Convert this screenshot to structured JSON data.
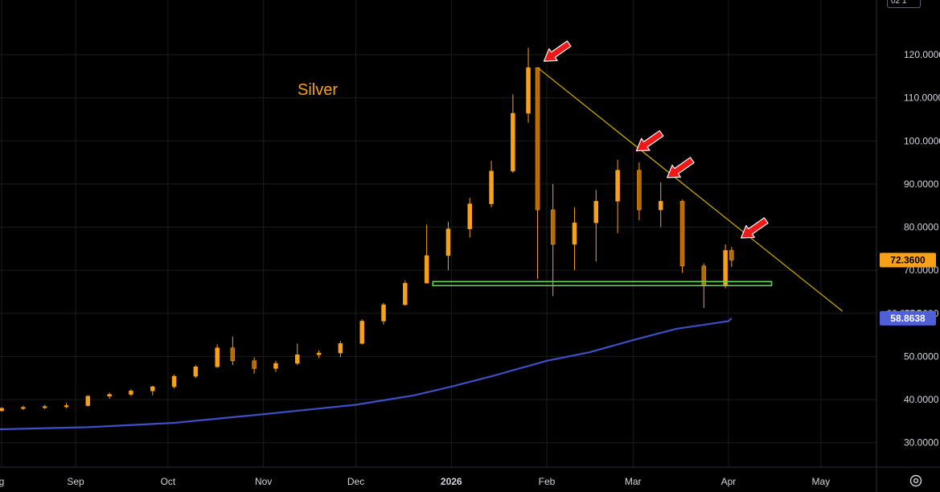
{
  "scale_box": {
    "label": "02 1"
  },
  "chart_data": {
    "type": "candlestick",
    "title": "Silver",
    "colors": {
      "background": "#000000",
      "candle": "#f7a11a",
      "trendline": "#d4b106",
      "support": "#5cdb4a",
      "moving_average": "#3f4fc4",
      "arrows": "#f01818",
      "grid": "#1c1c1c",
      "axis_text": "#d1d4dc"
    },
    "y_axis": {
      "min": 25,
      "max": 127,
      "ticks": [
        "30.0000",
        "40.0000",
        "50.0000",
        "60.0000",
        "70.0000",
        "80.0000",
        "90.0000",
        "100.0000",
        "110.0000",
        "120.0000"
      ]
    },
    "x_axis": {
      "ticks": [
        "g",
        "Sep",
        "Oct",
        "Nov",
        "Dec",
        "2026",
        "Feb",
        "Mar",
        "Apr",
        "May"
      ]
    },
    "last_price": "72.3600",
    "moving_average_last": "58.8638",
    "hidden_label_partial": "60.0000",
    "price_series": [
      [
        "Aug 1",
        37.0,
        37.6,
        36.8,
        37.4
      ],
      [
        "Aug 8",
        37.4,
        38.2,
        37.2,
        38.0
      ],
      [
        "Aug 15",
        38.0,
        38.6,
        37.6,
        38.2
      ],
      [
        "Aug 22",
        38.2,
        38.8,
        37.8,
        38.4
      ],
      [
        "Aug 29",
        38.4,
        39.2,
        38.0,
        38.6
      ],
      [
        "Sep 5",
        38.6,
        41.0,
        38.4,
        40.8
      ],
      [
        "Sep 12",
        40.8,
        41.6,
        40.2,
        41.2
      ],
      [
        "Sep 19",
        41.2,
        42.4,
        40.8,
        42.0
      ],
      [
        "Sep 26",
        42.0,
        43.2,
        41.0,
        43.0
      ],
      [
        "Oct 3",
        43.0,
        45.8,
        42.6,
        45.4
      ],
      [
        "Oct 10",
        45.4,
        48.0,
        45.0,
        47.6
      ],
      [
        "Oct 17",
        47.6,
        52.8,
        47.4,
        52.0
      ],
      [
        "Oct 22",
        52.0,
        54.6,
        48.0,
        49.0
      ],
      [
        "Oct 29",
        49.0,
        49.8,
        46.0,
        47.2
      ],
      [
        "Nov 5",
        47.2,
        49.0,
        46.4,
        48.4
      ],
      [
        "Nov 12",
        48.4,
        53.0,
        48.0,
        50.4
      ],
      [
        "Nov 19",
        50.4,
        51.4,
        49.6,
        50.8
      ],
      [
        "Nov 26",
        50.8,
        53.6,
        49.8,
        53.0
      ],
      [
        "Dec 3",
        53.0,
        58.6,
        52.8,
        58.2
      ],
      [
        "Dec 10",
        58.2,
        62.4,
        57.4,
        62.0
      ],
      [
        "Dec 17",
        62.0,
        67.6,
        61.8,
        67.0
      ],
      [
        "Dec 24",
        67.0,
        80.6,
        69.4,
        73.4
      ],
      [
        "Dec 31",
        73.4,
        81.2,
        70.0,
        79.6
      ],
      [
        "Jan 7",
        79.6,
        86.8,
        77.6,
        85.4
      ],
      [
        "Jan 14",
        85.4,
        95.4,
        84.6,
        93.0
      ],
      [
        "Jan 21",
        93.0,
        110.8,
        92.6,
        106.4
      ],
      [
        "Jan 26",
        106.4,
        121.6,
        104.2,
        117.0
      ],
      [
        "Jan 29",
        117.0,
        117.0,
        68.0,
        84.0
      ],
      [
        "Feb 3",
        84.0,
        90.0,
        64.0,
        76.0
      ],
      [
        "Feb 10",
        76.0,
        84.6,
        70.0,
        81.0
      ],
      [
        "Feb 17",
        81.0,
        88.6,
        72.0,
        86.0
      ],
      [
        "Feb 24",
        86.0,
        95.6,
        78.6,
        93.2
      ],
      [
        "Mar 3",
        93.2,
        95.0,
        81.6,
        84.0
      ],
      [
        "Mar 10",
        84.0,
        90.4,
        80.0,
        86.0
      ],
      [
        "Mar 17",
        86.0,
        86.4,
        69.4,
        71.0
      ],
      [
        "Mar 24",
        71.0,
        71.6,
        61.2,
        66.4
      ],
      [
        "Mar 31",
        66.4,
        76.0,
        65.8,
        74.6
      ],
      [
        "Apr 2",
        74.6,
        75.4,
        70.8,
        72.36
      ]
    ],
    "moving_average": [
      [
        "Aug 1",
        33.0
      ],
      [
        "Sep 5",
        33.6
      ],
      [
        "Oct 3",
        34.6
      ],
      [
        "Nov 1",
        36.6
      ],
      [
        "Dec 1",
        38.8
      ],
      [
        "Dec 20",
        41.0
      ],
      [
        "Jan 1",
        43.0
      ],
      [
        "Jan 15",
        45.6
      ],
      [
        "Feb 1",
        49.0
      ],
      [
        "Feb 15",
        51.0
      ],
      [
        "Mar 1",
        53.8
      ],
      [
        "Mar 15",
        56.4
      ],
      [
        "Apr 1",
        58.2
      ],
      [
        "Apr 2",
        58.8638
      ]
    ],
    "trendline": [
      [
        "Jan 29",
        117.0
      ],
      [
        "May 8",
        60.5
      ]
    ],
    "support_line": [
      [
        "Dec 26",
        66.9
      ],
      [
        "Apr 15",
        66.9
      ]
    ]
  }
}
